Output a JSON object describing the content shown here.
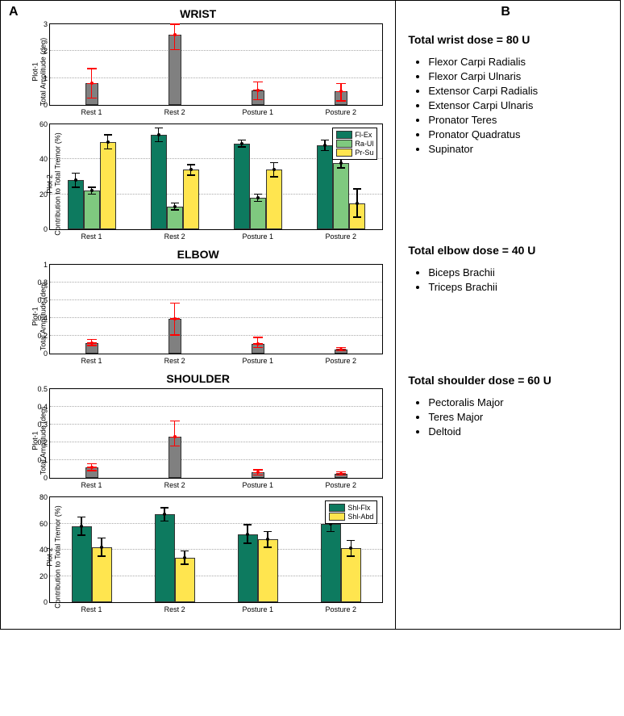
{
  "panelA_label": "A",
  "panelB_label": "B",
  "colors": {
    "gray": "#808080",
    "teal": "#0d7a5f",
    "light_green": "#7fc97f",
    "yellow": "#ffe54f",
    "err_red": "#ff0000",
    "err_black": "#000000",
    "grid": "#bbbbbb"
  },
  "sections": {
    "wrist": {
      "title": "WRIST",
      "amp": {
        "ylabel": "Plot-1\nTotal Amplitude (deg)",
        "ylim": [
          0,
          3
        ],
        "ytick_step": 1,
        "categories": [
          "Rest 1",
          "Rest 2",
          "Posture 1",
          "Posture 2"
        ],
        "values": [
          0.8,
          2.6,
          0.55,
          0.5
        ],
        "err_low": [
          0.55,
          0.55,
          0.35,
          0.35
        ],
        "err_high": [
          0.55,
          0.4,
          0.3,
          0.3
        ]
      },
      "contrib": {
        "ylabel": "Plot-2\nContribution to Total Tremor (%)",
        "ylim": [
          0,
          60
        ],
        "ytick_step": 20,
        "categories": [
          "Rest 1",
          "Rest 2",
          "Posture 1",
          "Posture 2"
        ],
        "legend": [
          {
            "label": "Fl-Ex",
            "color": "#0d7a5f"
          },
          {
            "label": "Ra-Ul",
            "color": "#7fc97f"
          },
          {
            "label": "Pr-Su",
            "color": "#ffe54f"
          }
        ],
        "series": [
          {
            "name": "Fl-Ex",
            "color": "#0d7a5f",
            "values": [
              28,
              54,
              49,
              48
            ],
            "err": [
              4,
              4,
              2,
              3
            ]
          },
          {
            "name": "Ra-Ul",
            "color": "#7fc97f",
            "values": [
              22,
              13,
              18,
              38
            ],
            "err": [
              2,
              2,
              2,
              3
            ]
          },
          {
            "name": "Pr-Su",
            "color": "#ffe54f",
            "values": [
              50,
              34,
              34,
              15
            ],
            "err": [
              4,
              3,
              4,
              8
            ]
          }
        ]
      }
    },
    "elbow": {
      "title": "ELBOW",
      "amp": {
        "ylabel": "Plot-1\nTotal Amplitude (deg)",
        "ylim": [
          0,
          1
        ],
        "ytick_step": 0.2,
        "categories": [
          "Rest 1",
          "Rest 2",
          "Posture 1",
          "Posture 2"
        ],
        "values": [
          0.12,
          0.39,
          0.11,
          0.05
        ],
        "err_low": [
          0.03,
          0.18,
          0.04,
          0.02
        ],
        "err_high": [
          0.04,
          0.18,
          0.07,
          0.02
        ]
      }
    },
    "shoulder": {
      "title": "SHOULDER",
      "amp": {
        "ylabel": "Plot-1\nTotal Amplitude (deg)",
        "ylim": [
          0,
          0.5
        ],
        "ytick_step": 0.1,
        "categories": [
          "Rest 1",
          "Rest 2",
          "Posture 1",
          "Posture 2"
        ],
        "values": [
          0.06,
          0.23,
          0.03,
          0.025
        ],
        "err_low": [
          0.02,
          0.05,
          0.015,
          0.01
        ],
        "err_high": [
          0.02,
          0.09,
          0.015,
          0.01
        ]
      },
      "contrib": {
        "ylabel": "Plot-2\nContribution to Total Tremor (%)",
        "ylim": [
          0,
          80
        ],
        "ytick_step": 20,
        "categories": [
          "Rest 1",
          "Rest 2",
          "Posture 1",
          "Posture 2"
        ],
        "legend": [
          {
            "label": "Shl-Flx",
            "color": "#0d7a5f"
          },
          {
            "label": "Shl-Abd",
            "color": "#ffe54f"
          }
        ],
        "series": [
          {
            "name": "Shl-Flx",
            "color": "#0d7a5f",
            "values": [
              58,
              67,
              52,
              60
            ],
            "err": [
              7,
              5,
              7,
              6
            ]
          },
          {
            "name": "Shl-Abd",
            "color": "#ffe54f",
            "values": [
              42,
              34,
              48,
              41
            ],
            "err": [
              7,
              5,
              6,
              6
            ]
          }
        ]
      }
    }
  },
  "panelB": {
    "wrist": {
      "title": "Total wrist dose = 80 U",
      "items": [
        "Flexor Carpi Radialis",
        "Flexor Carpi Ulnaris",
        "Extensor Carpi Radialis",
        "Extensor Carpi Ulnaris",
        "Pronator Teres",
        "Pronator Quadratus",
        "Supinator"
      ]
    },
    "elbow": {
      "title": "Total elbow dose = 40 U",
      "items": [
        "Biceps Brachii",
        "Triceps Brachii"
      ]
    },
    "shoulder": {
      "title": "Total shoulder dose = 60 U",
      "items": [
        "Pectoralis Major",
        "Teres Major",
        "Deltoid"
      ]
    }
  }
}
